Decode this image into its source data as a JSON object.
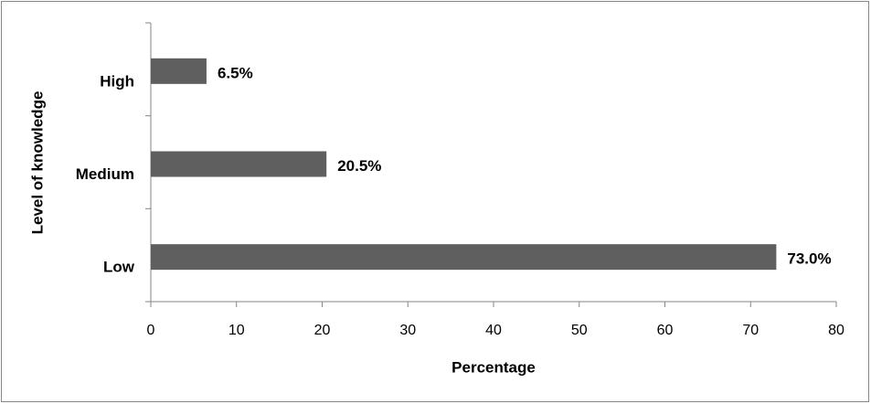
{
  "chart_data": {
    "type": "hbar",
    "categories": [
      "High",
      "Medium",
      "Low"
    ],
    "values": [
      6.5,
      20.5,
      73.0
    ],
    "value_labels": [
      "6.5%",
      "20.5%",
      "73.0%"
    ],
    "color": "#5f5f5f",
    "xlim": [
      0,
      80
    ],
    "xticks": [
      0,
      10,
      20,
      30,
      40,
      50,
      60,
      70,
      80
    ],
    "x_label": "Percentage",
    "y_label": "Level of knowledge"
  }
}
